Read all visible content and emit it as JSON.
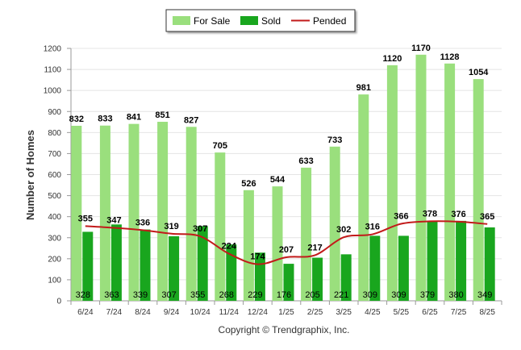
{
  "chart_data": {
    "type": "bar",
    "categories": [
      "6/24",
      "7/24",
      "8/24",
      "9/24",
      "10/24",
      "11/24",
      "12/24",
      "1/25",
      "2/25",
      "3/25",
      "4/25",
      "5/25",
      "6/25",
      "7/25",
      "8/25"
    ],
    "series": [
      {
        "name": "For Sale",
        "type": "bar",
        "color": "#9adf7d",
        "values": [
          832,
          833,
          841,
          851,
          827,
          705,
          526,
          544,
          633,
          733,
          981,
          1120,
          1170,
          1128,
          1054
        ]
      },
      {
        "name": "Sold",
        "type": "bar",
        "color": "#19a61e",
        "values": [
          328,
          363,
          339,
          307,
          355,
          268,
          229,
          176,
          205,
          221,
          309,
          309,
          379,
          380,
          349
        ]
      },
      {
        "name": "Pended",
        "type": "line",
        "color": "#c21a1a",
        "values": [
          355,
          347,
          336,
          319,
          307,
          224,
          174,
          207,
          217,
          302,
          316,
          366,
          378,
          376,
          365
        ]
      }
    ],
    "ylabel": "Number of Homes",
    "xlabel": "",
    "ylim": [
      0,
      1200
    ],
    "yticks": [
      0,
      100,
      200,
      300,
      400,
      500,
      600,
      700,
      800,
      900,
      1000,
      1100,
      1200
    ],
    "grid": true,
    "legend_position": "top-center"
  },
  "footer": {
    "copyright": "Copyright © Trendgraphix, Inc."
  }
}
